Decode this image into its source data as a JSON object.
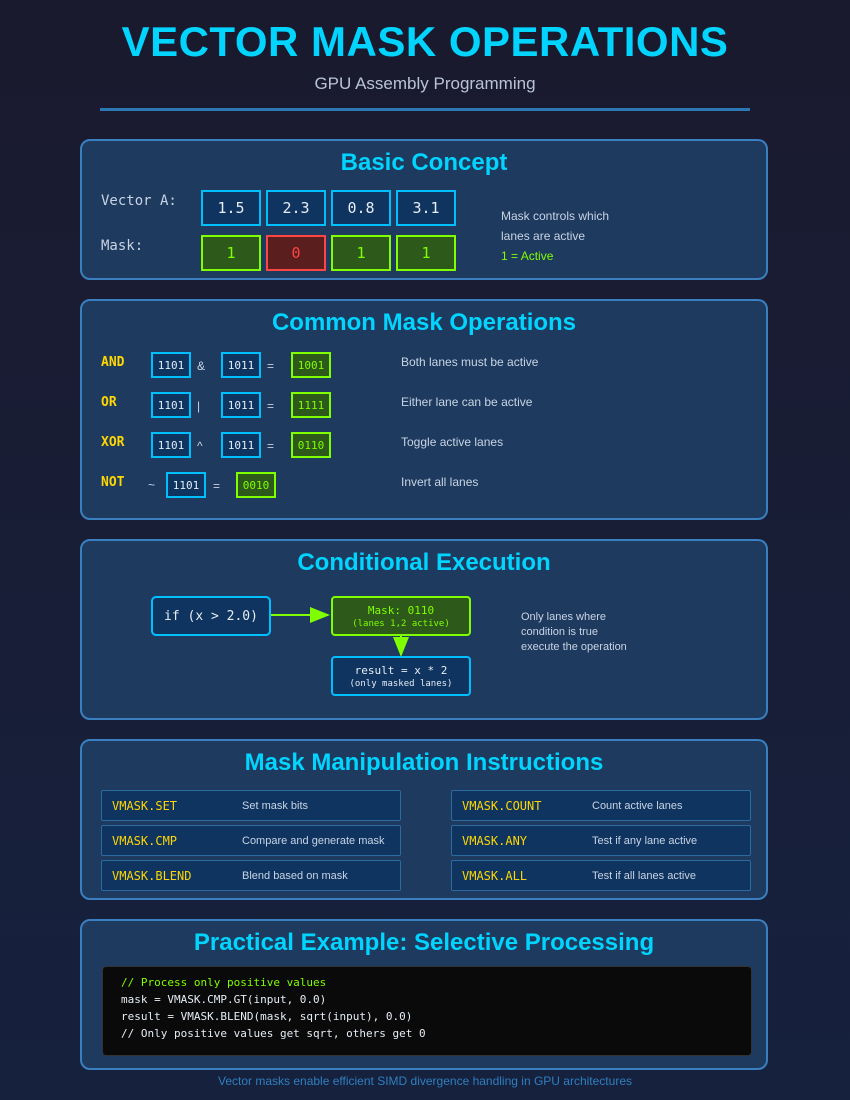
{
  "header": {
    "title": "VECTOR MASK OPERATIONS",
    "subtitle": "GPU Assembly Programming"
  },
  "basic_concept": {
    "title": "Basic Concept",
    "vector_label": "Vector A:",
    "mask_label": "Mask:",
    "vector_values": [
      "1.5",
      "2.3",
      "0.8",
      "3.1"
    ],
    "mask_values": [
      "1",
      "0",
      "1",
      "1"
    ],
    "note_line1": "Mask controls which",
    "note_line2": "lanes are active",
    "note_line3": "1 = Active"
  },
  "common_ops": {
    "title": "Common Mask Operations",
    "ops": [
      {
        "name": "AND",
        "a": "1101",
        "op": "&",
        "b": "1011",
        "eq": "=",
        "result": "1001",
        "desc": "Both lanes must be active"
      },
      {
        "name": "OR",
        "a": "1101",
        "op": "|",
        "b": "1011",
        "eq": "=",
        "result": "1111",
        "desc": "Either lane can be active"
      },
      {
        "name": "XOR",
        "a": "1101",
        "op": "^",
        "b": "1011",
        "eq": "=",
        "result": "0110",
        "desc": "Toggle active lanes"
      },
      {
        "name": "NOT",
        "prefix": "~",
        "a": "1101",
        "eq": "=",
        "result": "0010",
        "desc": "Invert all lanes"
      }
    ]
  },
  "conditional": {
    "title": "Conditional Execution",
    "condition": "if (x > 2.0)",
    "mask_line1": "Mask: 0110",
    "mask_line2": "(lanes 1,2 active)",
    "result_line1": "result = x * 2",
    "result_line2": "(only masked lanes)",
    "note_line1": "Only lanes where",
    "note_line2": "condition is true",
    "note_line3": "execute the operation"
  },
  "instructions": {
    "title": "Mask Manipulation Instructions",
    "left": [
      {
        "name": "VMASK.SET",
        "desc": "Set mask bits"
      },
      {
        "name": "VMASK.CMP",
        "desc": "Compare and generate mask"
      },
      {
        "name": "VMASK.BLEND",
        "desc": "Blend based on mask"
      }
    ],
    "right": [
      {
        "name": "VMASK.COUNT",
        "desc": "Count active lanes"
      },
      {
        "name": "VMASK.ANY",
        "desc": "Test if any lane active"
      },
      {
        "name": "VMASK.ALL",
        "desc": "Test if all lanes active"
      }
    ]
  },
  "example": {
    "title": "Practical Example: Selective Processing",
    "code": [
      "// Process only positive values",
      "mask = VMASK.CMP.GT(input, 0.0)",
      "result = VMASK.BLEND(mask, sqrt(input), 0.0)",
      "// Only positive values get sqrt, others get 0"
    ]
  },
  "footer": "Vector masks enable efficient SIMD divergence handling in GPU architectures",
  "colors": {
    "accent": "#00d4ff",
    "active": "#7fff00",
    "inactive": "#ff4444",
    "keyword": "#ffd700"
  }
}
